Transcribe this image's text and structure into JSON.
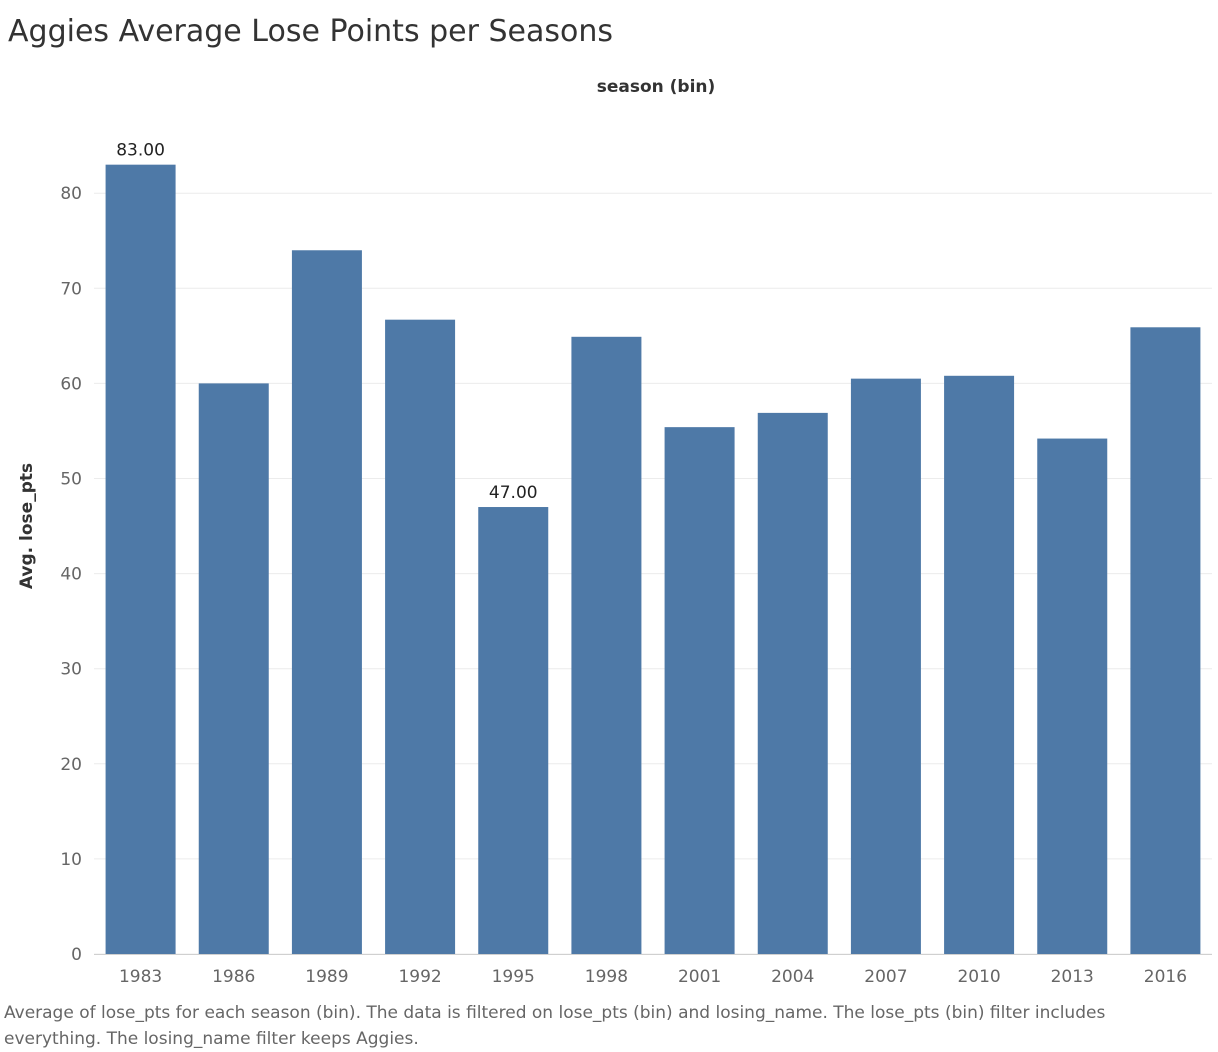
{
  "chart_data": {
    "type": "bar",
    "title": "Aggies Average Lose Points per Seasons",
    "column_header": "season (bin)",
    "ylabel": "Avg. lose_pts",
    "xlabel": "",
    "categories": [
      "1983",
      "1986",
      "1989",
      "1992",
      "1995",
      "1998",
      "2001",
      "2004",
      "2007",
      "2010",
      "2013",
      "2016"
    ],
    "values": [
      83.0,
      60.0,
      74.0,
      66.7,
      47.0,
      64.9,
      55.4,
      56.9,
      60.5,
      60.8,
      54.2,
      65.9
    ],
    "data_labels": [
      {
        "category": "1983",
        "text": "83.00"
      },
      {
        "category": "1995",
        "text": "47.00"
      }
    ],
    "ylim": [
      0,
      88
    ],
    "yticks": [
      0,
      10,
      20,
      30,
      40,
      50,
      60,
      70,
      80
    ],
    "grid": true,
    "bar_color": "#4e79a7",
    "caption": "Average of lose_pts for each season (bin).  The data is filtered on lose_pts (bin) and losing_name. The lose_pts (bin) filter includes everything. The losing_name filter keeps Aggies."
  }
}
